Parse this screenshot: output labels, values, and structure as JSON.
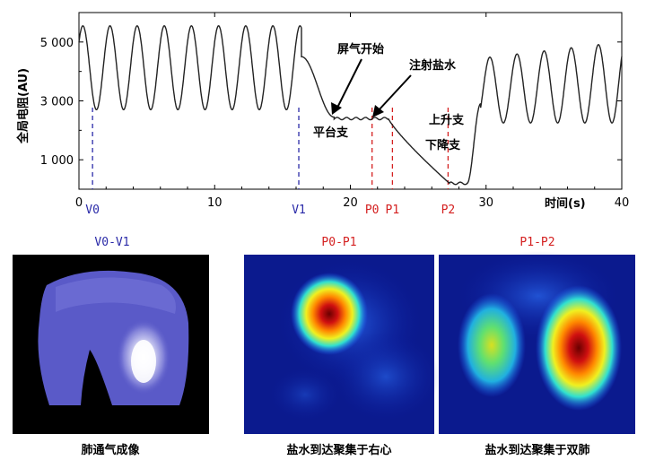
{
  "chart_data": {
    "type": "line",
    "ylabel": "全局电阻(AU)",
    "xlabel": "时间(s)",
    "xlim": [
      0,
      40
    ],
    "ylim": [
      0,
      6000
    ],
    "x_ticks": [
      0,
      10,
      20,
      30,
      40
    ],
    "y_ticks": [
      {
        "value": 1000,
        "label": "1 000"
      },
      {
        "value": 3000,
        "label": "3 000"
      },
      {
        "value": 5000,
        "label": "5 000"
      }
    ],
    "annotations": {
      "breath_hold": "屏气开始",
      "saline_injection": "注射盐水",
      "plateau": "平台支",
      "ascending": "上升支",
      "descending": "下降支"
    },
    "markers": [
      {
        "name": "V0",
        "x": 1.0,
        "color": "#2a2aa8"
      },
      {
        "name": "V1",
        "x": 16.2,
        "color": "#2a2aa8"
      },
      {
        "name": "P0",
        "x": 21.6,
        "color": "#d42020"
      },
      {
        "name": "P1",
        "x": 23.1,
        "color": "#d42020"
      },
      {
        "name": "P2",
        "x": 27.2,
        "color": "#d42020"
      }
    ],
    "series": [
      {
        "name": "global-impedance",
        "phases": [
          {
            "type": "oscillation",
            "t0": 0,
            "t1": 16.4,
            "peaks_per_s": 0.5,
            "min": 2700,
            "max": 5550,
            "start": 5000
          },
          {
            "type": "decay",
            "t0": 16.4,
            "t1": 18.8,
            "from": 4500,
            "to": 2450
          },
          {
            "type": "plateau",
            "t0": 18.8,
            "t1": 22.8,
            "level": 2400
          },
          {
            "type": "descending",
            "t0": 22.8,
            "t1": 27.3,
            "from": 2400,
            "to": 200
          },
          {
            "type": "trough",
            "t0": 27.3,
            "t1": 28.6,
            "level": 200
          },
          {
            "type": "ascending",
            "t0": 28.6,
            "t1": 29.6,
            "from": 200,
            "to": 2900
          },
          {
            "type": "oscillation",
            "t0": 29.6,
            "t1": 40,
            "peaks_per_s": 0.5,
            "min": 2250,
            "max": 5000,
            "start": 2900,
            "rising_peaks": true
          }
        ]
      }
    ]
  },
  "panels": [
    {
      "title": "V0-V1",
      "title_color": "#2a2aa8",
      "caption": "肺通气成像",
      "colormap": "blue-white"
    },
    {
      "title": "P0-P1",
      "title_color": "#d42020",
      "caption": "盐水到达聚集于右心",
      "colormap": "jet"
    },
    {
      "title": "P1-P2",
      "title_color": "#d42020",
      "caption": "盐水到达聚集于双肺",
      "colormap": "jet"
    }
  ]
}
